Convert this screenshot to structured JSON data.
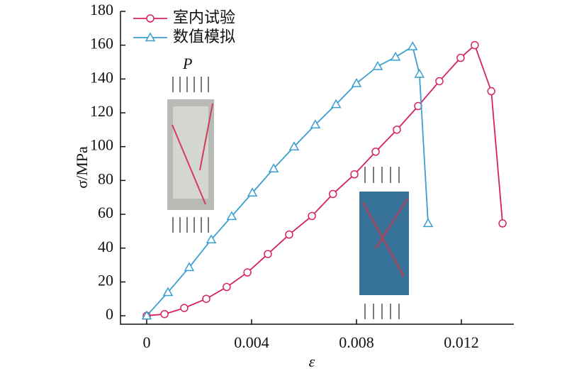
{
  "chart_data": {
    "type": "line",
    "x_label": "ε",
    "y_label": "σ/MPa",
    "annotation": "P",
    "xlim": [
      -0.001,
      0.014
    ],
    "xticks": [
      0,
      0.004,
      0.008,
      0.012
    ],
    "ylim": [
      -5,
      180
    ],
    "yticks": [
      0,
      20,
      40,
      60,
      80,
      100,
      120,
      140,
      160,
      180
    ],
    "legend": "upper left",
    "series": [
      {
        "name": "室内试验",
        "color": "#d6245a",
        "marker": "circle",
        "x": [
          0,
          0.00068,
          0.00143,
          0.00227,
          0.00305,
          0.00384,
          0.00462,
          0.00543,
          0.0063,
          0.0071,
          0.00792,
          0.00873,
          0.00954,
          0.01035,
          0.01116,
          0.01197,
          0.01251,
          0.01314,
          0.01357
        ],
        "values": [
          0,
          1,
          4.6,
          10,
          17,
          25.6,
          36.5,
          48,
          59,
          72,
          83.6,
          97,
          110,
          124,
          138.7,
          152.5,
          160,
          132.8,
          54.6
        ]
      },
      {
        "name": "数值模拟",
        "color": "#3a9fd0",
        "marker": "triangle",
        "x": [
          0,
          0.00081,
          0.00162,
          0.00246,
          0.00324,
          0.00403,
          0.00484,
          0.00562,
          0.00643,
          0.00722,
          0.008,
          0.00881,
          0.00949,
          0.01014,
          0.0104,
          0.01073
        ],
        "values": [
          0,
          13.9,
          28.6,
          45,
          58.8,
          72.7,
          87,
          100,
          113,
          125,
          137.4,
          147.5,
          153,
          159.2,
          142.9,
          54.6
        ]
      }
    ]
  }
}
